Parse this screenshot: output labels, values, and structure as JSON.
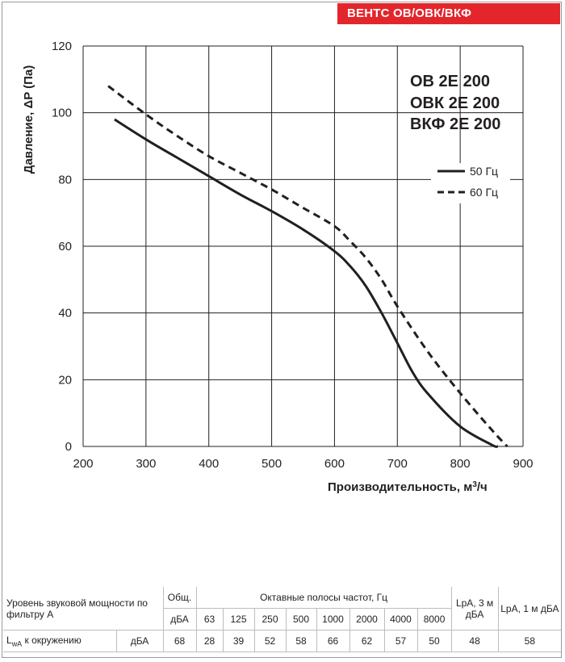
{
  "brand": "ВЕНТС ОВ/ОВК/ВКФ",
  "models": [
    "ОВ 2Е 200",
    "ОВК 2Е 200",
    "ВКФ 2Е 200"
  ],
  "colors": {
    "brand_red": "#e3262b",
    "curve": "#231f20",
    "grid": "#231f20"
  },
  "chart_data": {
    "type": "line",
    "xlabel": "Производительность,  м³/ч",
    "xlabel_main": "Производительность,  м",
    "xlabel_sup": "3",
    "xlabel_tail": "/ч",
    "ylabel": "Давление, ΔP (Па)",
    "xlim": [
      200,
      900
    ],
    "ylim": [
      0,
      120
    ],
    "xticks": [
      "200",
      "300",
      "400",
      "500",
      "600",
      "700",
      "800",
      "900"
    ],
    "yticks": [
      "0",
      "20",
      "40",
      "60",
      "80",
      "100",
      "120"
    ],
    "grid": true,
    "legend_position": "top-right",
    "series": [
      {
        "name": "50 Гц",
        "style": "solid",
        "x": [
          250,
          300,
          350,
          400,
          450,
          500,
          550,
          600,
          625,
          650,
          675,
          700,
          725,
          750,
          800,
          850,
          860
        ],
        "y": [
          98,
          92,
          86.5,
          81,
          75.5,
          70.5,
          65,
          58.5,
          54,
          48,
          40,
          31,
          22,
          15.5,
          6,
          0.5,
          0
        ]
      },
      {
        "name": "60 Гц",
        "style": "dashed",
        "x": [
          240,
          300,
          350,
          400,
          450,
          500,
          550,
          600,
          625,
          650,
          675,
          700,
          750,
          800,
          850,
          875
        ],
        "y": [
          108,
          99.5,
          93,
          87,
          82,
          77,
          71.5,
          66,
          61.5,
          56.5,
          50,
          42,
          28,
          16,
          5,
          0
        ]
      }
    ]
  },
  "noise_table": {
    "row1_label": "Уровень звуковой мощности по фильтру А",
    "total_header": "Общ.",
    "octave_header": "Октавные полосы частот, Гц",
    "lpa3_header": "LpA, 3 м дБА",
    "lpa1_header": "LpA, 1 м дБА",
    "unit": "дБА",
    "frequencies": [
      "63",
      "125",
      "250",
      "500",
      "1000",
      "2000",
      "4000",
      "8000"
    ],
    "row_label_main": "L",
    "row_label_sub": "wA",
    "row_label_tail": " к окружению",
    "row_unit": "дБА",
    "total_value": "68",
    "values": [
      "28",
      "39",
      "52",
      "58",
      "66",
      "62",
      "57",
      "50"
    ],
    "lpa3_value": "48",
    "lpa1_value": "58"
  }
}
